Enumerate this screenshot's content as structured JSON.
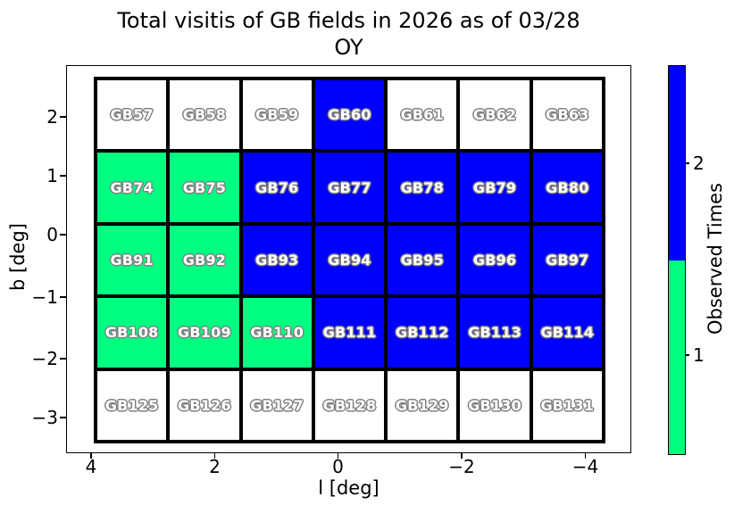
{
  "figure": {
    "title_line1": "Total visitis of GB fields in 2026 as of 03/28",
    "title_line2": "OY"
  },
  "axes": {
    "xlabel": "l [deg]",
    "ylabel": "b [deg]",
    "x_tick_labels": [
      "4",
      "2",
      "0",
      "−2",
      "−4"
    ],
    "y_tick_labels": [
      "2",
      "1",
      "0",
      "−1",
      "−2",
      "−3"
    ]
  },
  "colorbar": {
    "label": "Observed Times",
    "ticks": [
      {
        "label": "2"
      },
      {
        "label": "1"
      }
    ],
    "segments": [
      {
        "value": 2,
        "color": "#0000ff"
      },
      {
        "value": 1,
        "color": "#00ff80"
      }
    ]
  },
  "chart_data": {
    "type": "heatmap",
    "title": "Total visitis of GB fields in 2026 as of 03/28 OY",
    "xlabel": "l [deg]",
    "ylabel": "b [deg]",
    "x_ticks": [
      4,
      2,
      0,
      -2,
      -4
    ],
    "y_ticks": [
      2,
      1,
      0,
      -1,
      -2,
      -3
    ],
    "x_axis_reversed": true,
    "xlim": [
      4.4,
      -4.75
    ],
    "ylim": [
      -3.6,
      2.87
    ],
    "colorbar_label": "Observed Times",
    "colorbar_ticks": [
      1,
      2
    ],
    "value_colors": {
      "0": "#ffffff",
      "1": "#00ff80",
      "2": "#0000ff"
    },
    "l_centers": [
      3.4,
      2.2,
      1.0,
      -0.2,
      -1.3,
      -2.5,
      -3.7
    ],
    "grid_rows": [
      {
        "b_center": 2.0,
        "fields": [
          {
            "name": "GB57",
            "visits": 0
          },
          {
            "name": "GB58",
            "visits": 0
          },
          {
            "name": "GB59",
            "visits": 0
          },
          {
            "name": "GB60",
            "visits": 2
          },
          {
            "name": "GB61",
            "visits": 0
          },
          {
            "name": "GB62",
            "visits": 0
          },
          {
            "name": "GB63",
            "visits": 0
          }
        ]
      },
      {
        "b_center": 0.8,
        "fields": [
          {
            "name": "GB74",
            "visits": 1
          },
          {
            "name": "GB75",
            "visits": 1
          },
          {
            "name": "GB76",
            "visits": 2
          },
          {
            "name": "GB77",
            "visits": 2
          },
          {
            "name": "GB78",
            "visits": 2
          },
          {
            "name": "GB79",
            "visits": 2
          },
          {
            "name": "GB80",
            "visits": 2
          }
        ]
      },
      {
        "b_center": -0.4,
        "fields": [
          {
            "name": "GB91",
            "visits": 1
          },
          {
            "name": "GB92",
            "visits": 1
          },
          {
            "name": "GB93",
            "visits": 2
          },
          {
            "name": "GB94",
            "visits": 2
          },
          {
            "name": "GB95",
            "visits": 2
          },
          {
            "name": "GB96",
            "visits": 2
          },
          {
            "name": "GB97",
            "visits": 2
          }
        ]
      },
      {
        "b_center": -1.6,
        "fields": [
          {
            "name": "GB108",
            "visits": 1
          },
          {
            "name": "GB109",
            "visits": 1
          },
          {
            "name": "GB110",
            "visits": 1
          },
          {
            "name": "GB111",
            "visits": 2
          },
          {
            "name": "GB112",
            "visits": 2
          },
          {
            "name": "GB113",
            "visits": 2
          },
          {
            "name": "GB114",
            "visits": 2
          }
        ]
      },
      {
        "b_center": -2.9,
        "fields": [
          {
            "name": "GB125",
            "visits": 0
          },
          {
            "name": "GB126",
            "visits": 0
          },
          {
            "name": "GB127",
            "visits": 0
          },
          {
            "name": "GB128",
            "visits": 0
          },
          {
            "name": "GB129",
            "visits": 0
          },
          {
            "name": "GB130",
            "visits": 0
          },
          {
            "name": "GB131",
            "visits": 0
          }
        ]
      }
    ]
  }
}
